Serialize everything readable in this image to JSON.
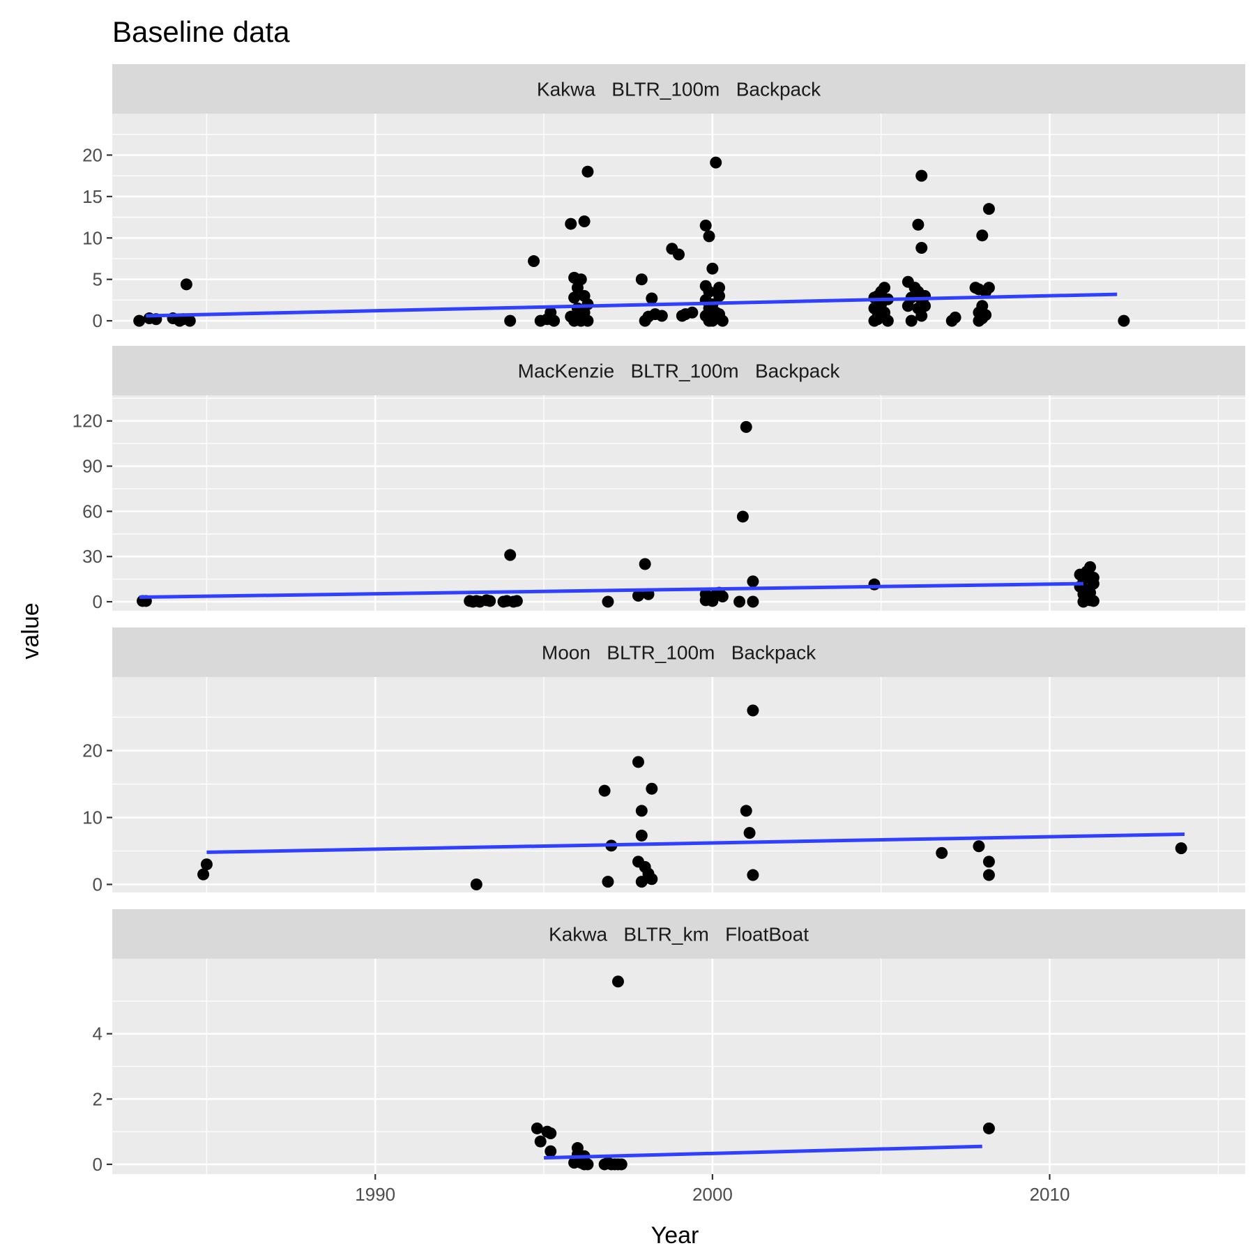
{
  "chart_data": {
    "type": "scatter",
    "title": "Baseline data",
    "xlabel": "Year",
    "ylabel": "value",
    "xlim": [
      1982.2,
      2015.8
    ],
    "x_ticks": [
      1990,
      2000,
      2010
    ],
    "colors": {
      "points": "#000000",
      "trend": "#3040FF",
      "panel": "#EBEBEB",
      "strip": "#D9D9D9"
    },
    "panels": [
      {
        "label": "Kakwa   BLTR_100m   Backpack",
        "ylim": [
          -1,
          25
        ],
        "y_ticks": [
          0,
          5,
          10,
          15,
          20
        ],
        "trend": [
          [
            1983.2,
            0.6
          ],
          [
            2012.0,
            3.2
          ]
        ],
        "points": [
          [
            1983.0,
            0
          ],
          [
            1983.3,
            0.3
          ],
          [
            1983.5,
            0.2
          ],
          [
            1984.0,
            0.3
          ],
          [
            1984.2,
            0
          ],
          [
            1984.4,
            4.4
          ],
          [
            1984.5,
            0
          ],
          [
            1984.3,
            0.2
          ],
          [
            1994.0,
            0
          ],
          [
            1994.7,
            7.2
          ],
          [
            1994.9,
            0
          ],
          [
            1995.1,
            0.2
          ],
          [
            1995.2,
            1.0
          ],
          [
            1995.3,
            0
          ],
          [
            1995.8,
            11.7
          ],
          [
            1995.9,
            5.2
          ],
          [
            1996.0,
            4.0
          ],
          [
            1995.9,
            2.8
          ],
          [
            1995.8,
            0.5
          ],
          [
            1996.0,
            1.5
          ],
          [
            1996.1,
            5.0
          ],
          [
            1996.2,
            3.0
          ],
          [
            1996.1,
            0
          ],
          [
            1996.2,
            12.0
          ],
          [
            1996.3,
            18.0
          ],
          [
            1996.3,
            2.0
          ],
          [
            1996.2,
            1.0
          ],
          [
            1996.3,
            0
          ],
          [
            1995.9,
            0
          ],
          [
            1996.0,
            0.8
          ],
          [
            1997.9,
            5.0
          ],
          [
            1998.0,
            0
          ],
          [
            1998.1,
            0.5
          ],
          [
            1998.2,
            2.7
          ],
          [
            1998.3,
            0.8
          ],
          [
            1998.5,
            0.6
          ],
          [
            1998.8,
            8.7
          ],
          [
            1999.0,
            8.0
          ],
          [
            1999.1,
            0.6
          ],
          [
            1999.2,
            0.8
          ],
          [
            1999.4,
            1.0
          ],
          [
            1999.8,
            11.5
          ],
          [
            1999.9,
            10.2
          ],
          [
            1999.8,
            4.2
          ],
          [
            1999.9,
            3.5
          ],
          [
            1999.8,
            2.5
          ],
          [
            1999.9,
            1.5
          ],
          [
            1999.8,
            0.6
          ],
          [
            1999.9,
            0
          ],
          [
            2000.0,
            0
          ],
          [
            2000.1,
            0.5
          ],
          [
            2000.0,
            2.0
          ],
          [
            2000.1,
            1.0
          ],
          [
            2000.0,
            6.3
          ],
          [
            2000.1,
            19.1
          ],
          [
            2000.2,
            4.0
          ],
          [
            2000.2,
            3.0
          ],
          [
            2000.3,
            0
          ],
          [
            2000.2,
            0.8
          ],
          [
            2000.0,
            0.3
          ],
          [
            2004.8,
            2.8
          ],
          [
            2004.9,
            3.0
          ],
          [
            2004.8,
            1.5
          ],
          [
            2004.9,
            0.5
          ],
          [
            2004.8,
            0
          ],
          [
            2005.0,
            3.5
          ],
          [
            2005.1,
            4.0
          ],
          [
            2005.0,
            2.0
          ],
          [
            2005.1,
            1.0
          ],
          [
            2005.2,
            0
          ],
          [
            2005.2,
            2.6
          ],
          [
            2004.9,
            0.2
          ],
          [
            2005.1,
            0.5
          ],
          [
            2005.8,
            4.7
          ],
          [
            2005.9,
            2.8
          ],
          [
            2005.8,
            1.8
          ],
          [
            2005.9,
            0
          ],
          [
            2006.0,
            4.0
          ],
          [
            2006.1,
            11.6
          ],
          [
            2006.2,
            17.5
          ],
          [
            2006.2,
            8.8
          ],
          [
            2006.1,
            3.5
          ],
          [
            2006.2,
            2.5
          ],
          [
            2006.3,
            3.0
          ],
          [
            2006.1,
            1.5
          ],
          [
            2006.2,
            0.6
          ],
          [
            2006.3,
            1.8
          ],
          [
            2007.1,
            0
          ],
          [
            2007.2,
            0.4
          ],
          [
            2007.8,
            4.0
          ],
          [
            2007.9,
            3.8
          ],
          [
            2008.0,
            10.3
          ],
          [
            2007.9,
            0
          ],
          [
            2008.0,
            1.8
          ],
          [
            2008.1,
            0.7
          ],
          [
            2008.2,
            13.5
          ],
          [
            2008.2,
            4.0
          ],
          [
            2008.1,
            3.5
          ],
          [
            2007.9,
            1.0
          ],
          [
            2008.0,
            0.3
          ],
          [
            2012.2,
            0
          ]
        ]
      },
      {
        "label": "MacKenzie   BLTR_100m   Backpack",
        "ylim": [
          -6,
          137
        ],
        "y_ticks": [
          0,
          30,
          60,
          90,
          120
        ],
        "trend": [
          [
            1983.0,
            3
          ],
          [
            2011.0,
            12
          ]
        ],
        "points": [
          [
            1983.1,
            0.5
          ],
          [
            1983.2,
            0.5
          ],
          [
            1992.8,
            0.5
          ],
          [
            1992.9,
            0
          ],
          [
            1993.0,
            0.5
          ],
          [
            1993.1,
            0
          ],
          [
            1993.3,
            1.0
          ],
          [
            1993.4,
            0.5
          ],
          [
            1993.8,
            0
          ],
          [
            1993.9,
            0.5
          ],
          [
            1994.0,
            31
          ],
          [
            1994.1,
            0
          ],
          [
            1994.2,
            0.5
          ],
          [
            1996.9,
            0
          ],
          [
            1997.8,
            4.0
          ],
          [
            1998.0,
            25
          ],
          [
            1998.1,
            5.0
          ],
          [
            1999.8,
            1.0
          ],
          [
            1999.9,
            2.5
          ],
          [
            1999.8,
            5.0
          ],
          [
            2000.0,
            3.0
          ],
          [
            2000.1,
            4.5
          ],
          [
            2000.2,
            5.0
          ],
          [
            2000.3,
            3.5
          ],
          [
            2000.0,
            0.5
          ],
          [
            2000.2,
            6.0
          ],
          [
            2000.8,
            0
          ],
          [
            2000.9,
            56.5
          ],
          [
            2001.0,
            116
          ],
          [
            2001.2,
            13.5
          ],
          [
            2001.2,
            0
          ],
          [
            2004.8,
            11.5
          ],
          [
            2010.9,
            18
          ],
          [
            2011.0,
            15
          ],
          [
            2011.1,
            20
          ],
          [
            2011.2,
            23
          ],
          [
            2011.3,
            16
          ],
          [
            2010.9,
            10
          ],
          [
            2011.0,
            5
          ],
          [
            2011.1,
            3
          ],
          [
            2011.2,
            1
          ],
          [
            2011.3,
            0.5
          ],
          [
            2011.0,
            0
          ],
          [
            2011.2,
            6
          ],
          [
            2011.3,
            12
          ],
          [
            2011.1,
            8
          ]
        ]
      },
      {
        "label": "Moon   BLTR_100m   Backpack",
        "ylim": [
          -1.2,
          31
        ],
        "y_ticks": [
          0,
          10,
          20
        ],
        "trend": [
          [
            1985.0,
            4.8
          ],
          [
            2014.0,
            7.5
          ]
        ],
        "points": [
          [
            1984.9,
            1.5
          ],
          [
            1985.0,
            3.0
          ],
          [
            1993.0,
            0
          ],
          [
            1996.8,
            14.0
          ],
          [
            1996.9,
            0.4
          ],
          [
            1997.0,
            5.8
          ],
          [
            1997.8,
            18.3
          ],
          [
            1997.9,
            11.0
          ],
          [
            1997.9,
            7.3
          ],
          [
            1997.8,
            3.4
          ],
          [
            1997.9,
            0.4
          ],
          [
            1998.0,
            2.6
          ],
          [
            1998.1,
            1.6
          ],
          [
            1998.2,
            0.8
          ],
          [
            1998.2,
            14.3
          ],
          [
            1998.1,
            1.0
          ],
          [
            2001.0,
            11.0
          ],
          [
            2001.1,
            7.7
          ],
          [
            2001.2,
            26.0
          ],
          [
            2001.2,
            1.4
          ],
          [
            2006.8,
            4.7
          ],
          [
            2007.9,
            5.7
          ],
          [
            2008.2,
            3.4
          ],
          [
            2008.2,
            1.4
          ],
          [
            2013.9,
            5.4
          ]
        ]
      },
      {
        "label": "Kakwa   BLTR_km   FloatBoat",
        "ylim": [
          -0.3,
          6.3
        ],
        "y_ticks": [
          0,
          2,
          4
        ],
        "trend": [
          [
            1995.0,
            0.2
          ],
          [
            2008.0,
            0.55
          ]
        ],
        "points": [
          [
            1994.8,
            1.1
          ],
          [
            1994.9,
            0.7
          ],
          [
            1995.1,
            1.0
          ],
          [
            1995.2,
            0.4
          ],
          [
            1995.2,
            0.95
          ],
          [
            1995.9,
            0.05
          ],
          [
            1996.0,
            0.3
          ],
          [
            1996.0,
            0.5
          ],
          [
            1996.1,
            0.15
          ],
          [
            1996.2,
            0.0
          ],
          [
            1996.2,
            0.25
          ],
          [
            1996.3,
            0.0
          ],
          [
            1996.1,
            0.05
          ],
          [
            1996.8,
            0.0
          ],
          [
            1996.9,
            0.05
          ],
          [
            1997.0,
            0.0
          ],
          [
            1997.1,
            0.0
          ],
          [
            1997.2,
            0.0
          ],
          [
            1997.3,
            0.0
          ],
          [
            1997.2,
            5.6
          ],
          [
            2008.2,
            1.1
          ]
        ]
      }
    ]
  }
}
